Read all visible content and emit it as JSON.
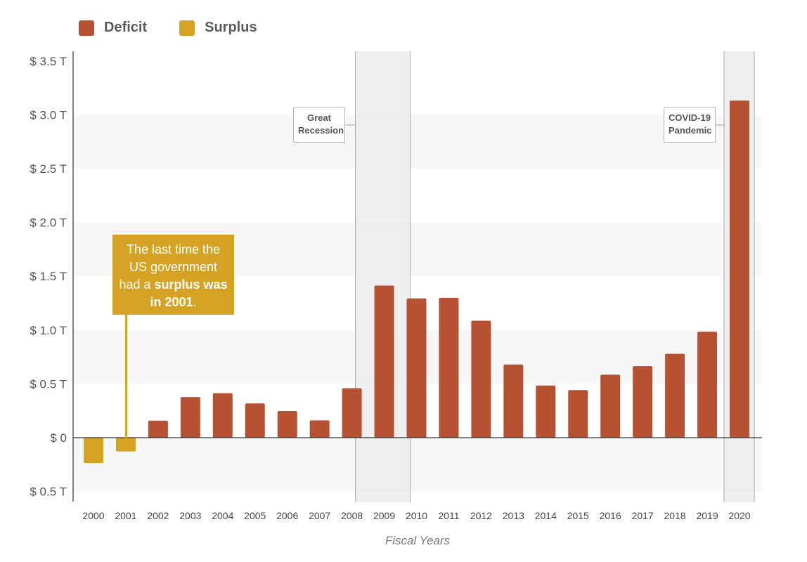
{
  "legend": [
    {
      "label": "Deficit",
      "color": "#b65232"
    },
    {
      "label": "Surplus",
      "color": "#d6a224"
    }
  ],
  "callout": {
    "line1": "The last time the",
    "line2": "US government",
    "line3_pre": "had a ",
    "line3_bold": "surplus was",
    "line4_bold": "in 2001",
    "line4_post": "."
  },
  "events": [
    {
      "line1": "Great",
      "line2": "Recession"
    },
    {
      "line1": "COVID-19",
      "line2": "Pandemic"
    }
  ],
  "chart_data": {
    "type": "bar",
    "xlabel": "Fiscal Years",
    "ylabel": "",
    "ylim": [
      -0.6,
      3.5
    ],
    "y_tick_values": [
      -0.5,
      0,
      0.5,
      1.0,
      1.5,
      2.0,
      2.5,
      3.0,
      3.5
    ],
    "y_tick_labels": [
      "$ 0.5 T",
      "$ 0",
      "$ 0.5 T",
      "$ 1.0 T",
      "$ 1.5 T",
      "$ 2.0 T",
      "$ 2.5 T",
      "$ 3.0 T",
      "$ 3.5 T"
    ],
    "categories": [
      "2000",
      "2001",
      "2002",
      "2003",
      "2004",
      "2005",
      "2006",
      "2007",
      "2008",
      "2009",
      "2010",
      "2011",
      "2012",
      "2013",
      "2014",
      "2015",
      "2016",
      "2017",
      "2018",
      "2019",
      "2020"
    ],
    "values": [
      -0.236,
      -0.128,
      0.158,
      0.378,
      0.413,
      0.318,
      0.248,
      0.161,
      0.459,
      1.413,
      1.294,
      1.3,
      1.087,
      0.68,
      0.485,
      0.442,
      0.585,
      0.665,
      0.779,
      0.984,
      3.132
    ],
    "series_types": [
      "Surplus",
      "Surplus",
      "Deficit",
      "Deficit",
      "Deficit",
      "Deficit",
      "Deficit",
      "Deficit",
      "Deficit",
      "Deficit",
      "Deficit",
      "Deficit",
      "Deficit",
      "Deficit",
      "Deficit",
      "Deficit",
      "Deficit",
      "Deficit",
      "Deficit",
      "Deficit",
      "Deficit"
    ],
    "shaded_periods": [
      {
        "from": "2008",
        "to": "2010"
      },
      {
        "from": "2020",
        "to": "2020"
      }
    ],
    "grid": "alternating horizontal bands",
    "legend_position": "top-left"
  }
}
